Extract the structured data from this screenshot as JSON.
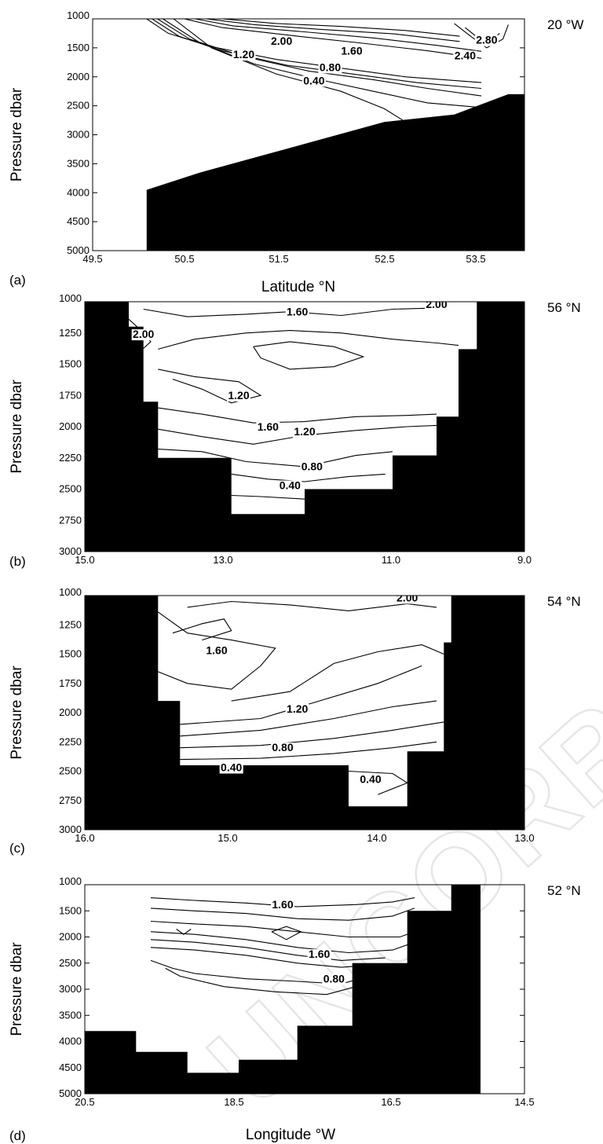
{
  "watermark": "UNCORRECTED PROOF",
  "colors": {
    "ink": "#000000",
    "bathymetry": "#000000",
    "background": "#ffffff",
    "watermark": "#e6e6e6"
  },
  "chart_data": [
    {
      "type": "contour",
      "panel": "(a)",
      "section_label": "20 °W",
      "xlabel": "Latitude  °N",
      "ylabel": "Pressure dbar",
      "xlim": [
        49.5,
        53.5
      ],
      "ylim": [
        5000,
        1000
      ],
      "x_ticks": [
        "49.5",
        "50.5",
        "51.5",
        "52.5",
        "53.5"
      ],
      "y_ticks": [
        "1000",
        "1500",
        "2000",
        "2500",
        "3000",
        "3500",
        "4000",
        "4500",
        "5000"
      ],
      "contour_labels": [
        {
          "text": "2.00",
          "x": 51.25,
          "y": 1450
        },
        {
          "text": "1.60",
          "x": 51.9,
          "y": 1620
        },
        {
          "text": "1.20",
          "x": 50.9,
          "y": 1680
        },
        {
          "text": "0.80",
          "x": 51.7,
          "y": 1900
        },
        {
          "text": "0.40",
          "x": 51.55,
          "y": 2130
        },
        {
          "text": "2.40",
          "x": 52.95,
          "y": 1700
        },
        {
          "text": "2.80",
          "x": 53.15,
          "y": 1430
        }
      ],
      "bottom_profile": [
        [
          50.0,
          3950
        ],
        [
          50.5,
          3650
        ],
        [
          52.2,
          2780
        ],
        [
          52.85,
          2650
        ],
        [
          53.35,
          2300
        ],
        [
          53.5,
          2300
        ]
      ]
    },
    {
      "type": "contour",
      "panel": "(b)",
      "section_label": "56 °N",
      "xlabel": "",
      "ylabel": "Pressure dbar",
      "xlim": [
        15.0,
        9.0
      ],
      "ylim": [
        3000,
        1000
      ],
      "x_ticks": [
        "15.0",
        "13.0",
        "11.0",
        "9.0"
      ],
      "y_ticks": [
        "1000",
        "1250",
        "1500",
        "1750",
        "2000",
        "2250",
        "2500",
        "2750",
        "3000"
      ],
      "contour_labels": [
        {
          "text": "2.00",
          "x": 14.2,
          "y": 1290
        },
        {
          "text": "1.60",
          "x": 12.1,
          "y": 1110
        },
        {
          "text": "2.00",
          "x": 10.2,
          "y": 1050
        },
        {
          "text": "1.20",
          "x": 12.9,
          "y": 1780
        },
        {
          "text": "1.60",
          "x": 12.5,
          "y": 2030
        },
        {
          "text": "1.20",
          "x": 12.0,
          "y": 2070
        },
        {
          "text": "0.80",
          "x": 11.9,
          "y": 2350
        },
        {
          "text": "0.40",
          "x": 12.2,
          "y": 2500
        }
      ],
      "bottom_profile_west": [
        [
          15.0,
          1000
        ],
        [
          14.4,
          1000
        ],
        [
          14.4,
          1200
        ],
        [
          14.2,
          1200
        ],
        [
          14.2,
          1800
        ],
        [
          14.0,
          1800
        ],
        [
          14.0,
          2250
        ],
        [
          13.0,
          2250
        ],
        [
          13.0,
          2700
        ],
        [
          12.0,
          2700
        ],
        [
          12.0,
          2500
        ]
      ],
      "bottom_profile_east": [
        [
          12.0,
          2500
        ],
        [
          10.8,
          2500
        ],
        [
          10.8,
          2230
        ],
        [
          10.2,
          2230
        ],
        [
          10.2,
          1920
        ],
        [
          9.9,
          1920
        ],
        [
          9.9,
          1380
        ],
        [
          9.65,
          1380
        ],
        [
          9.65,
          1000
        ],
        [
          9.0,
          1000
        ]
      ]
    },
    {
      "type": "contour",
      "panel": "(c)",
      "section_label": "54 °N",
      "xlabel": "",
      "ylabel": "Pressure dbar",
      "xlim": [
        16.0,
        13.0
      ],
      "ylim": [
        3000,
        1000
      ],
      "x_ticks": [
        "16.0",
        "15.0",
        "14.0",
        "13.0"
      ],
      "y_ticks": [
        "1000",
        "1250",
        "1500",
        "1750",
        "2000",
        "2250",
        "2500",
        "2750",
        "3000"
      ],
      "contour_labels": [
        {
          "text": "1.60",
          "x": 15.1,
          "y": 1500
        },
        {
          "text": "2.00",
          "x": 13.8,
          "y": 1050
        },
        {
          "text": "1.20",
          "x": 14.55,
          "y": 2000
        },
        {
          "text": "0.80",
          "x": 14.65,
          "y": 2330
        },
        {
          "text": "0.40",
          "x": 15.0,
          "y": 2500
        },
        {
          "text": "0.40",
          "x": 14.05,
          "y": 2600
        }
      ],
      "bottom_profile": [
        [
          16.0,
          1000
        ],
        [
          15.5,
          1000
        ],
        [
          15.5,
          1900
        ],
        [
          15.35,
          1900
        ],
        [
          15.35,
          2450
        ],
        [
          14.2,
          2450
        ],
        [
          14.2,
          2800
        ],
        [
          13.8,
          2800
        ],
        [
          13.8,
          2330
        ],
        [
          13.55,
          2330
        ],
        [
          13.55,
          1400
        ],
        [
          13.5,
          1400
        ],
        [
          13.5,
          1000
        ],
        [
          13.0,
          1000
        ]
      ]
    },
    {
      "type": "contour",
      "panel": "(d)",
      "section_label": "52 °N",
      "xlabel": "Longitude °W",
      "ylabel": "Pressure dbar",
      "xlim": [
        20.5,
        14.5
      ],
      "ylim": [
        5000,
        1000
      ],
      "x_ticks": [
        "20.5",
        "18.5",
        "16.5",
        "14.5"
      ],
      "y_ticks": [
        "1000",
        "1500",
        "2000",
        "2500",
        "3000",
        "3500",
        "4000",
        "4500",
        "5000"
      ],
      "contour_labels": [
        {
          "text": "1.60",
          "x": 17.8,
          "y": 1450
        },
        {
          "text": "1.60",
          "x": 17.3,
          "y": 2400
        },
        {
          "text": "0.80",
          "x": 17.1,
          "y": 2870
        }
      ],
      "bottom_profile": [
        [
          20.8,
          3650
        ],
        [
          20.5,
          3650
        ],
        [
          20.5,
          3800
        ],
        [
          19.8,
          3800
        ],
        [
          19.8,
          4200
        ],
        [
          19.1,
          4200
        ],
        [
          19.1,
          4600
        ],
        [
          18.4,
          4600
        ],
        [
          18.4,
          4350
        ],
        [
          17.6,
          4350
        ],
        [
          17.6,
          3700
        ],
        [
          16.85,
          3700
        ],
        [
          16.85,
          2500
        ],
        [
          16.1,
          2500
        ],
        [
          16.1,
          1500
        ],
        [
          15.5,
          1500
        ],
        [
          15.5,
          1000
        ],
        [
          15.1,
          1000
        ]
      ]
    }
  ]
}
